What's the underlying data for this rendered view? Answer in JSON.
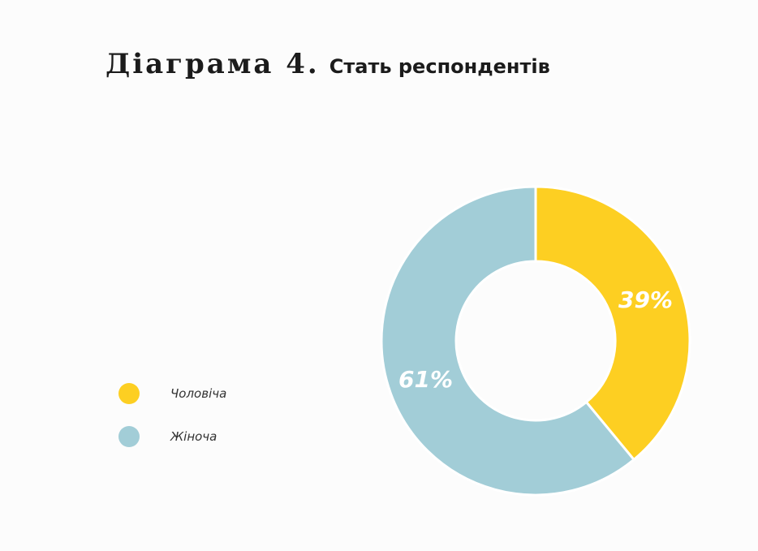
{
  "title": {
    "main": "Діаграма 4.",
    "sub": "Стать респондентів"
  },
  "chart_data": {
    "type": "pie",
    "donut": true,
    "title": "Діаграма 4. Стать респондентів",
    "categories": [
      "Чоловіча",
      "Жіноча"
    ],
    "values": [
      39,
      61
    ],
    "labels": [
      "39%",
      "61%"
    ],
    "colors": [
      "#fdcf22",
      "#a2cdd7"
    ],
    "legend_position": "left"
  },
  "legend": {
    "items": [
      {
        "label": "Чоловіча",
        "color": "#fdcf22"
      },
      {
        "label": "Жіноча",
        "color": "#a2cdd7"
      }
    ]
  }
}
